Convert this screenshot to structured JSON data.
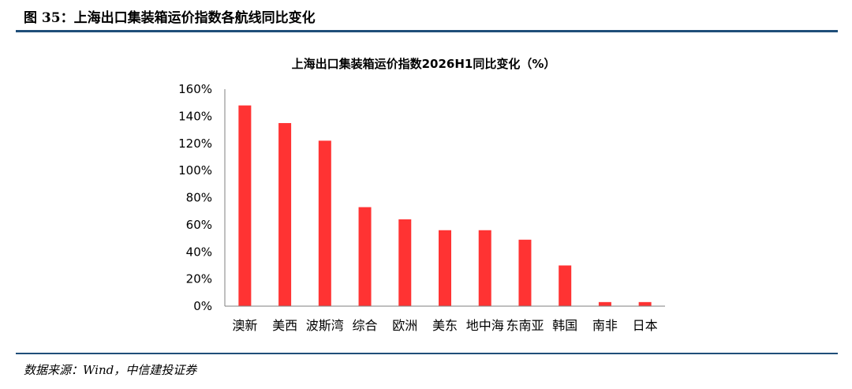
{
  "figure": {
    "header": "图 35：上海出口集装箱运价指数各航线同比变化",
    "source": "数据来源：Wind，中信建投证券"
  },
  "colors": {
    "bar": "#ff3333",
    "rule": "#1f4e79",
    "axis": "#7f7f7f"
  },
  "chart_data": {
    "type": "bar",
    "title": "上海出口集装箱运价指数2026H1同比变化（%）",
    "categories": [
      "澳新",
      "美西",
      "波斯湾",
      "综合",
      "欧洲",
      "美东",
      "地中海",
      "东南亚",
      "韩国",
      "南非",
      "日本"
    ],
    "values": [
      148,
      135,
      122,
      73,
      64,
      56,
      56,
      49,
      30,
      3,
      3
    ],
    "ylim": [
      0,
      160
    ],
    "yticks": [
      "0%",
      "20%",
      "40%",
      "60%",
      "80%",
      "100%",
      "120%",
      "140%",
      "160%"
    ],
    "ytick_values": [
      0,
      20,
      40,
      60,
      80,
      100,
      120,
      140,
      160
    ],
    "grid": false,
    "legend": "none"
  }
}
